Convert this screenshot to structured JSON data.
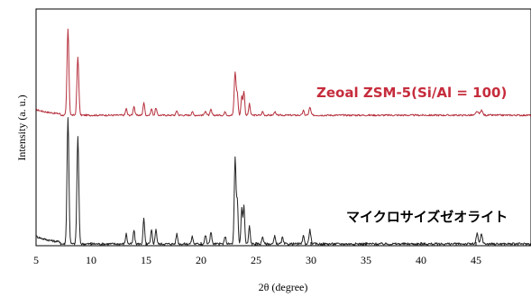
{
  "chart_data": {
    "type": "line",
    "title": "",
    "xlabel": "2θ (degree)",
    "ylabel": "Intensity (a. u.)",
    "xlim": [
      5,
      50
    ],
    "x_ticks": [
      "5",
      "10",
      "15",
      "20",
      "25",
      "30",
      "35",
      "40",
      "45"
    ],
    "y_ticks_shown": false,
    "grid": false,
    "series": [
      {
        "name": "Zeoal ZSM-5(Si/Al = 100)",
        "color": "#b5303d",
        "baseline": 0.13,
        "peaks": [
          [
            7.9,
            0.92,
            0.12
          ],
          [
            8.8,
            0.62,
            0.12
          ],
          [
            13.2,
            0.07,
            0.1
          ],
          [
            13.9,
            0.1,
            0.1
          ],
          [
            14.8,
            0.14,
            0.1
          ],
          [
            15.5,
            0.07,
            0.1
          ],
          [
            15.9,
            0.08,
            0.1
          ],
          [
            17.8,
            0.05,
            0.1
          ],
          [
            19.2,
            0.04,
            0.1
          ],
          [
            20.4,
            0.05,
            0.1
          ],
          [
            20.9,
            0.06,
            0.1
          ],
          [
            22.2,
            0.04,
            0.1
          ],
          [
            23.1,
            0.46,
            0.12
          ],
          [
            23.3,
            0.22,
            0.1
          ],
          [
            23.7,
            0.2,
            0.1
          ],
          [
            23.9,
            0.26,
            0.1
          ],
          [
            24.4,
            0.12,
            0.1
          ],
          [
            25.6,
            0.04,
            0.1
          ],
          [
            26.7,
            0.04,
            0.1
          ],
          [
            29.3,
            0.05,
            0.1
          ],
          [
            29.9,
            0.08,
            0.12
          ],
          [
            45.1,
            0.04,
            0.15
          ],
          [
            45.5,
            0.05,
            0.15
          ]
        ]
      },
      {
        "name": "マイクロサイズゼオライト",
        "color": "#222222",
        "baseline": 0.03,
        "peaks": [
          [
            7.9,
            1.0,
            0.12
          ],
          [
            8.8,
            0.85,
            0.12
          ],
          [
            13.2,
            0.08,
            0.1
          ],
          [
            13.9,
            0.11,
            0.1
          ],
          [
            14.8,
            0.2,
            0.1
          ],
          [
            15.5,
            0.11,
            0.1
          ],
          [
            15.9,
            0.12,
            0.1
          ],
          [
            17.8,
            0.08,
            0.1
          ],
          [
            19.2,
            0.06,
            0.1
          ],
          [
            20.4,
            0.07,
            0.1
          ],
          [
            20.9,
            0.1,
            0.1
          ],
          [
            22.2,
            0.06,
            0.1
          ],
          [
            23.1,
            0.68,
            0.11
          ],
          [
            23.3,
            0.34,
            0.1
          ],
          [
            23.7,
            0.28,
            0.1
          ],
          [
            23.9,
            0.3,
            0.1
          ],
          [
            24.4,
            0.14,
            0.1
          ],
          [
            25.6,
            0.06,
            0.1
          ],
          [
            26.7,
            0.06,
            0.1
          ],
          [
            27.4,
            0.05,
            0.1
          ],
          [
            29.3,
            0.07,
            0.1
          ],
          [
            29.9,
            0.11,
            0.12
          ],
          [
            45.1,
            0.08,
            0.12
          ],
          [
            45.5,
            0.08,
            0.12
          ]
        ]
      }
    ]
  }
}
